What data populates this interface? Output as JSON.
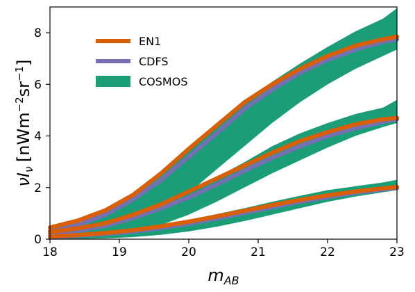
{
  "chart_data": {
    "type": "line",
    "xlabel_main": "m",
    "xlabel_sub": "AB",
    "ylabel_main": "νI",
    "ylabel_sub": "ν",
    "ylabel_units_pre": "[nWm",
    "ylabel_units_exp1": "−2",
    "ylabel_units_mid": "sr",
    "ylabel_units_exp2": "−1",
    "ylabel_units_post": "]",
    "xlim": [
      18,
      23
    ],
    "ylim": [
      0,
      9.0
    ],
    "xticks": [
      18,
      19,
      20,
      21,
      22,
      23
    ],
    "yticks": [
      0,
      2,
      4,
      6,
      8
    ],
    "grid": false,
    "legend": {
      "placement": "top-left",
      "entries": [
        {
          "label": "EN1",
          "color": "#d95f02",
          "kind": "line"
        },
        {
          "label": "CDFS",
          "color": "#7570b3",
          "kind": "line"
        },
        {
          "label": "COSMOS",
          "color": "#1b9e77",
          "kind": "band"
        }
      ]
    },
    "x": [
      18.0,
      18.4,
      18.8,
      19.2,
      19.6,
      20.0,
      20.4,
      20.8,
      21.2,
      21.6,
      22.0,
      22.4,
      22.8,
      23.0
    ],
    "groups": [
      {
        "EN1": [
          0.45,
          0.72,
          1.12,
          1.72,
          2.55,
          3.5,
          4.4,
          5.3,
          6.0,
          6.6,
          7.1,
          7.5,
          7.75,
          7.85
        ],
        "CDFS": [
          0.32,
          0.55,
          0.95,
          1.55,
          2.3,
          3.2,
          4.1,
          5.05,
          5.8,
          6.45,
          6.95,
          7.35,
          7.65,
          7.75
        ],
        "COSMOS_low": [
          0.02,
          0.08,
          0.22,
          0.5,
          1.05,
          1.8,
          2.7,
          3.6,
          4.5,
          5.3,
          6.0,
          6.6,
          7.1,
          7.35
        ],
        "COSMOS_high": [
          0.35,
          0.62,
          1.05,
          1.7,
          2.5,
          3.4,
          4.35,
          5.3,
          6.1,
          6.8,
          7.45,
          8.05,
          8.55,
          8.95
        ]
      },
      {
        "EN1": [
          0.28,
          0.42,
          0.62,
          0.95,
          1.35,
          1.85,
          2.35,
          2.85,
          3.35,
          3.8,
          4.15,
          4.45,
          4.65,
          4.7
        ],
        "CDFS": [
          0.2,
          0.32,
          0.52,
          0.82,
          1.2,
          1.62,
          2.12,
          2.65,
          3.15,
          3.6,
          4.0,
          4.3,
          4.55,
          4.65
        ],
        "COSMOS_low": [
          0.02,
          0.05,
          0.12,
          0.28,
          0.55,
          0.95,
          1.45,
          2.0,
          2.55,
          3.05,
          3.55,
          4.0,
          4.35,
          4.5
        ],
        "COSMOS_high": [
          0.22,
          0.36,
          0.58,
          0.92,
          1.35,
          1.85,
          2.4,
          2.98,
          3.6,
          4.1,
          4.5,
          4.85,
          5.1,
          5.4
        ]
      },
      {
        "EN1": [
          0.1,
          0.16,
          0.24,
          0.35,
          0.5,
          0.68,
          0.88,
          1.1,
          1.32,
          1.52,
          1.7,
          1.85,
          1.97,
          2.02
        ],
        "CDFS": [
          0.08,
          0.13,
          0.2,
          0.3,
          0.43,
          0.6,
          0.8,
          1.02,
          1.24,
          1.45,
          1.63,
          1.8,
          1.93,
          1.98
        ],
        "COSMOS_low": [
          0.0,
          0.01,
          0.03,
          0.08,
          0.17,
          0.3,
          0.48,
          0.7,
          0.95,
          1.2,
          1.45,
          1.65,
          1.82,
          1.9
        ],
        "COSMOS_high": [
          0.1,
          0.16,
          0.25,
          0.38,
          0.55,
          0.75,
          0.97,
          1.2,
          1.45,
          1.68,
          1.9,
          2.05,
          2.2,
          2.3
        ]
      }
    ]
  }
}
